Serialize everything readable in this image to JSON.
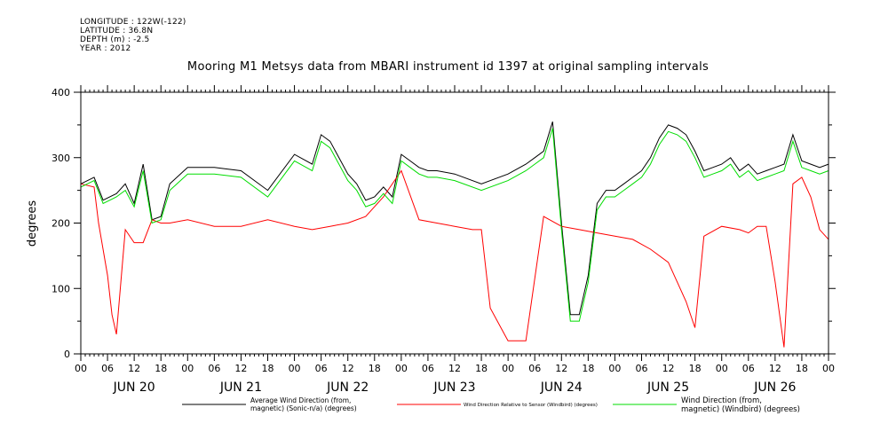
{
  "meta": {
    "longitude": "LONGITUDE : 122W(-122)",
    "latitude": "LATITUDE : 36.8N",
    "depth": "DEPTH (m) : -2.5",
    "year": "YEAR : 2012"
  },
  "chart_data": {
    "type": "line",
    "title": "Mooring M1 Metsys data from MBARI instrument id 1397 at original sampling intervals",
    "xlabel": "",
    "ylabel": "degrees",
    "ylim": [
      0,
      400
    ],
    "y_ticks": [
      0,
      100,
      200,
      300,
      400
    ],
    "xlim": [
      0,
      168
    ],
    "x_tick_labels": [
      "00",
      "06",
      "12",
      "18",
      "00",
      "06",
      "12",
      "18",
      "00",
      "06",
      "12",
      "18",
      "00",
      "06",
      "12",
      "18",
      "00",
      "06",
      "12",
      "18",
      "00",
      "06",
      "12",
      "18",
      "00",
      "06",
      "12",
      "18",
      "00"
    ],
    "day_labels": [
      "JUN 20",
      "JUN 21",
      "JUN 22",
      "JUN 23",
      "JUN 24",
      "JUN 25",
      "JUN 26"
    ],
    "grid": false,
    "legend_placement": "bottom",
    "colors": {
      "black": "#000000",
      "red": "#ff0000",
      "green": "#00dd00"
    },
    "series": [
      {
        "name": "Average Wind Direction (from, magnetic) (Sonic-n/a) (degrees)",
        "color": "#000000",
        "x": [
          0,
          3,
          5,
          8,
          10,
          12,
          14,
          16,
          18,
          20,
          24,
          30,
          36,
          42,
          48,
          52,
          54,
          56,
          58,
          60,
          62,
          64,
          66,
          68,
          70,
          72,
          74,
          76,
          78,
          80,
          84,
          90,
          96,
          100,
          102,
          104,
          106,
          108,
          110,
          112,
          114,
          116,
          118,
          120,
          122,
          124,
          126,
          128,
          130,
          132,
          134,
          136,
          138,
          140,
          142,
          144,
          146,
          148,
          150,
          152,
          154,
          156,
          158,
          160,
          162,
          164,
          166,
          168
        ],
        "y": [
          260,
          270,
          235,
          245,
          260,
          230,
          290,
          205,
          210,
          260,
          285,
          285,
          280,
          250,
          305,
          290,
          335,
          325,
          300,
          275,
          260,
          235,
          240,
          255,
          240,
          305,
          295,
          285,
          280,
          280,
          275,
          260,
          275,
          290,
          300,
          310,
          355,
          200,
          60,
          60,
          120,
          230,
          250,
          250,
          260,
          270,
          280,
          300,
          330,
          350,
          345,
          335,
          310,
          280,
          285,
          290,
          300,
          280,
          290,
          275,
          280,
          285,
          290,
          335,
          295,
          290,
          285,
          290
        ]
      },
      {
        "name": "Wind Direction Relative to Sensor (Windbird) (degrees)",
        "color": "#ff0000",
        "x": [
          0,
          3,
          4,
          6,
          7,
          8,
          10,
          12,
          14,
          16,
          18,
          20,
          24,
          30,
          36,
          42,
          48,
          52,
          56,
          60,
          64,
          68,
          72,
          76,
          80,
          84,
          88,
          90,
          92,
          96,
          100,
          104,
          108,
          112,
          116,
          120,
          124,
          128,
          132,
          136,
          138,
          140,
          144,
          148,
          150,
          152,
          154,
          156,
          158,
          160,
          162,
          164,
          166,
          168
        ],
        "y": [
          260,
          255,
          200,
          120,
          60,
          30,
          190,
          170,
          170,
          205,
          200,
          200,
          205,
          195,
          195,
          205,
          195,
          190,
          195,
          200,
          210,
          240,
          280,
          205,
          200,
          195,
          190,
          190,
          70,
          20,
          20,
          210,
          195,
          190,
          185,
          180,
          175,
          160,
          140,
          80,
          40,
          180,
          195,
          190,
          185,
          195,
          195,
          110,
          10,
          260,
          270,
          240,
          190,
          175
        ]
      },
      {
        "name": "Wind Direction (from, magnetic) (Windbird) (degrees)",
        "color": "#00dd00",
        "x": [
          0,
          3,
          5,
          8,
          10,
          12,
          14,
          16,
          18,
          20,
          24,
          30,
          36,
          42,
          48,
          52,
          54,
          56,
          58,
          60,
          62,
          64,
          66,
          68,
          70,
          72,
          74,
          76,
          78,
          80,
          84,
          90,
          96,
          100,
          102,
          104,
          106,
          108,
          110,
          112,
          114,
          116,
          118,
          120,
          122,
          124,
          126,
          128,
          130,
          132,
          134,
          136,
          138,
          140,
          142,
          144,
          146,
          148,
          150,
          152,
          154,
          156,
          158,
          160,
          162,
          164,
          166,
          168
        ],
        "y": [
          255,
          265,
          230,
          240,
          250,
          225,
          280,
          200,
          205,
          250,
          275,
          275,
          270,
          240,
          295,
          280,
          325,
          315,
          290,
          265,
          250,
          225,
          230,
          245,
          230,
          295,
          285,
          275,
          270,
          270,
          265,
          250,
          265,
          280,
          290,
          300,
          345,
          190,
          50,
          50,
          110,
          220,
          240,
          240,
          250,
          260,
          270,
          290,
          320,
          340,
          335,
          325,
          300,
          270,
          275,
          280,
          290,
          270,
          280,
          265,
          270,
          275,
          280,
          325,
          285,
          280,
          275,
          280
        ]
      }
    ]
  },
  "legend": {
    "black_line1": "Average Wind Direction (from,",
    "black_line2": "magnetic) (Sonic-n/a) (degrees)",
    "red": "Wind Direction Relative to Sensor (Windbird) (degrees)",
    "green_line1": "Wind Direction (from,",
    "green_line2": "magnetic) (Windbird) (degrees)"
  }
}
